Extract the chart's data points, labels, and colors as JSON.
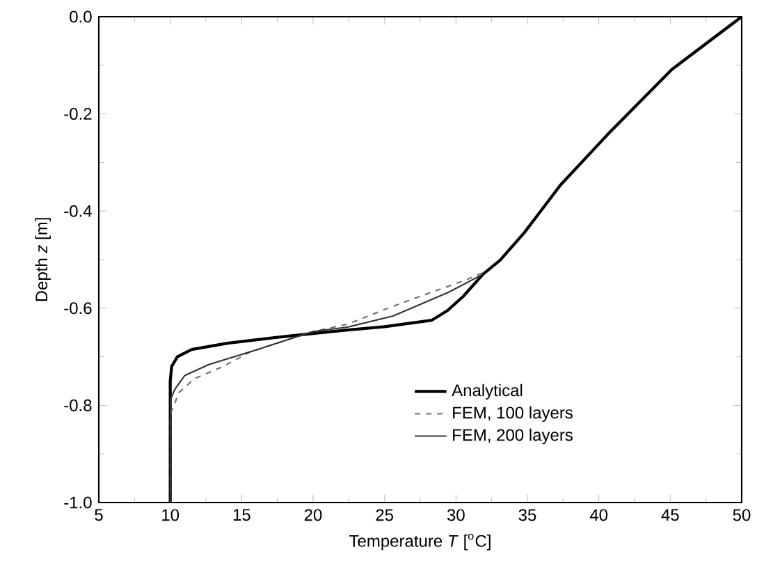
{
  "chart_data": {
    "type": "line",
    "xlabel": "Temperature *T* [$^{o}$C]",
    "ylabel": "Depth *z* [m]",
    "xlim": [
      5,
      50
    ],
    "ylim": [
      -1.0,
      0.0
    ],
    "xticks": [
      5,
      10,
      15,
      20,
      25,
      30,
      35,
      40,
      45,
      50
    ],
    "yticks": [
      {
        "value": -1.0,
        "label": "-1.0"
      },
      {
        "value": -0.8,
        "label": "-0.8"
      },
      {
        "value": -0.6,
        "label": "-0.6"
      },
      {
        "value": -0.4,
        "label": "-0.4"
      },
      {
        "value": -0.2,
        "label": "-0.2"
      },
      {
        "value": 0.0,
        "label": "0.0"
      }
    ],
    "legend": "bottom right",
    "grid": false,
    "series": [
      {
        "name": "Analytical",
        "color": "#000000",
        "line_style": "solid",
        "x": [
          10,
          10,
          10.1,
          10.5,
          11.5,
          14,
          17.5,
          20,
          22.4,
          25,
          28.3,
          29.4,
          30.5,
          31.9,
          33.1,
          34.8,
          37.3,
          40.6,
          45.1,
          50
        ],
        "values": [
          -1.0,
          -0.75,
          -0.72,
          -0.7,
          -0.685,
          -0.672,
          -0.66,
          -0.652,
          -0.645,
          -0.638,
          -0.625,
          -0.605,
          -0.576,
          -0.53,
          -0.501,
          -0.444,
          -0.347,
          -0.243,
          -0.109,
          0.0
        ]
      },
      {
        "name": "FEM, 100 layers",
        "color": "#707070",
        "line_style": "dashed",
        "x": [
          10,
          10,
          10.3,
          10.6,
          11.7,
          13.7,
          15.6,
          20,
          22.4,
          25.6,
          28.3,
          30.5,
          31.9
        ],
        "values": [
          -1.0,
          -0.82,
          -0.797,
          -0.774,
          -0.745,
          -0.72,
          -0.69,
          -0.648,
          -0.633,
          -0.596,
          -0.567,
          -0.544,
          -0.527
        ]
      },
      {
        "name": "FEM, 200 layers",
        "color": "#333333",
        "line_style": "solid",
        "x": [
          10,
          10,
          10.3,
          11,
          12.7,
          15.9,
          20,
          22.4,
          25.6,
          29.5,
          31.9
        ],
        "values": [
          -1.0,
          -0.79,
          -0.768,
          -0.739,
          -0.716,
          -0.687,
          -0.648,
          -0.639,
          -0.616,
          -0.567,
          -0.53
        ]
      }
    ]
  }
}
